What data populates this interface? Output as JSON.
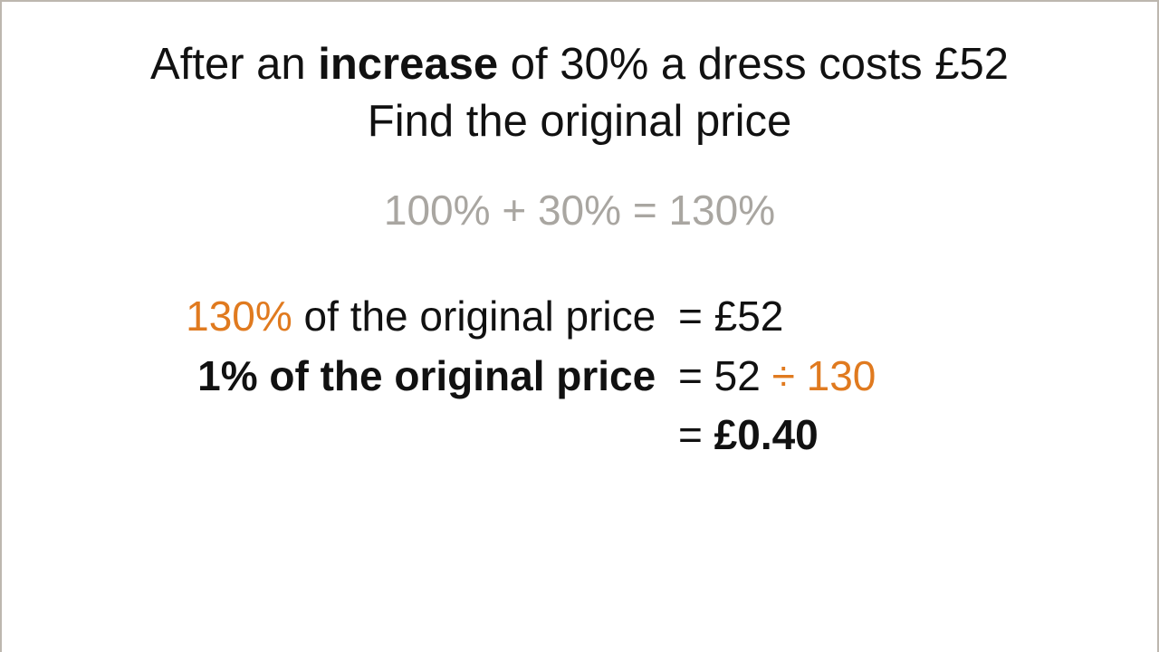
{
  "colors": {
    "text": "#111111",
    "muted": "#a9a6a1",
    "accent": "#e07a1f",
    "border": "#bdb7af",
    "background": "#ffffff"
  },
  "title": {
    "prefix": "After an ",
    "bold": "increase",
    "suffix": " of 30% a dress costs £52",
    "line2": "Find the original price",
    "fontsize": 49
  },
  "sub": {
    "text": "100% + 30% = 130%",
    "fontsize": 46
  },
  "work": {
    "fontsize": 46,
    "row1": {
      "lhs_orange": "130%",
      "lhs_rest": " of the original price ",
      "rhs": "= £52"
    },
    "row2": {
      "lhs": "1% of the original price ",
      "rhs_a": "= 52 ",
      "rhs_orange": "÷ 130"
    },
    "row3": {
      "rhs_eq": "= ",
      "rhs_bold": "£0.40"
    }
  }
}
